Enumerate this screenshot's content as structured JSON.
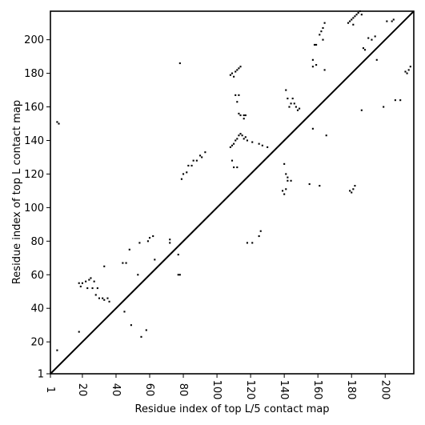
{
  "chart_data": {
    "type": "scatter",
    "xlabel": "Residue index of top L/5 contact map",
    "ylabel": "Residue index of top L contact map",
    "xlim": [
      1,
      217
    ],
    "ylim": [
      1,
      217
    ],
    "x_ticks": [
      1,
      20,
      40,
      60,
      80,
      100,
      120,
      140,
      160,
      180,
      200
    ],
    "y_ticks": [
      1,
      20,
      40,
      60,
      80,
      100,
      120,
      140,
      160,
      180,
      200
    ],
    "diagonal": true,
    "marker_color": "#000000",
    "series": [
      {
        "points": [
          [
            18,
            26
          ],
          [
            20,
            55
          ],
          [
            22,
            56
          ],
          [
            24,
            57
          ],
          [
            26,
            52
          ],
          [
            25,
            58
          ],
          [
            27,
            56
          ],
          [
            28,
            48
          ],
          [
            30,
            46
          ],
          [
            32,
            46
          ],
          [
            33,
            45
          ],
          [
            35,
            46
          ],
          [
            36,
            44
          ],
          [
            29,
            52
          ],
          [
            23,
            52
          ],
          [
            18,
            55
          ],
          [
            19,
            53
          ],
          [
            44,
            67
          ],
          [
            46,
            67
          ],
          [
            48,
            75
          ],
          [
            53,
            60
          ],
          [
            54,
            79
          ],
          [
            59,
            80
          ],
          [
            60,
            82
          ],
          [
            62,
            83
          ],
          [
            63,
            69
          ],
          [
            72,
            79
          ],
          [
            72,
            81
          ],
          [
            33,
            65
          ],
          [
            45,
            38
          ],
          [
            49,
            30
          ],
          [
            55,
            23
          ],
          [
            58,
            27
          ],
          [
            77,
            60
          ],
          [
            78,
            60
          ],
          [
            77,
            72
          ],
          [
            79,
            117
          ],
          [
            80,
            120
          ],
          [
            82,
            121
          ],
          [
            83,
            125
          ],
          [
            85,
            125
          ],
          [
            86,
            128
          ],
          [
            88,
            128
          ],
          [
            90,
            131
          ],
          [
            91,
            130
          ],
          [
            93,
            133
          ],
          [
            108,
            136
          ],
          [
            109,
            137
          ],
          [
            110,
            138
          ],
          [
            111,
            140
          ],
          [
            112,
            141
          ],
          [
            113,
            143
          ],
          [
            114,
            144
          ],
          [
            115,
            143
          ],
          [
            116,
            141
          ],
          [
            117,
            142
          ],
          [
            118,
            140
          ],
          [
            121,
            139
          ],
          [
            125,
            138
          ],
          [
            127,
            137
          ],
          [
            130,
            136
          ],
          [
            108,
            179
          ],
          [
            109,
            180
          ],
          [
            110,
            178
          ],
          [
            111,
            181
          ],
          [
            112,
            182
          ],
          [
            113,
            183
          ],
          [
            114,
            184
          ],
          [
            113,
            156
          ],
          [
            114,
            155
          ],
          [
            116,
            155
          ],
          [
            117,
            155
          ],
          [
            116,
            153
          ],
          [
            111,
            167
          ],
          [
            113,
            167
          ],
          [
            112,
            163
          ],
          [
            109,
            128
          ],
          [
            110,
            124
          ],
          [
            112,
            124
          ],
          [
            118,
            79
          ],
          [
            121,
            79
          ],
          [
            125,
            83
          ],
          [
            126,
            86
          ],
          [
            139,
            110
          ],
          [
            141,
            111
          ],
          [
            140,
            108
          ],
          [
            142,
            116
          ],
          [
            144,
            116
          ],
          [
            140,
            126
          ],
          [
            141,
            120
          ],
          [
            142,
            118
          ],
          [
            141,
            170
          ],
          [
            142,
            165
          ],
          [
            144,
            162
          ],
          [
            146,
            162
          ],
          [
            147,
            160
          ],
          [
            148,
            158
          ],
          [
            149,
            159
          ],
          [
            145,
            165
          ],
          [
            143,
            160
          ],
          [
            155,
            114
          ],
          [
            157,
            188
          ],
          [
            157,
            184
          ],
          [
            158,
            197
          ],
          [
            159,
            197
          ],
          [
            159,
            185
          ],
          [
            161,
            203
          ],
          [
            162,
            205
          ],
          [
            163,
            207
          ],
          [
            164,
            210
          ],
          [
            163,
            200
          ],
          [
            164,
            182
          ],
          [
            165,
            143
          ],
          [
            161,
            113
          ],
          [
            157,
            147
          ],
          [
            178,
            210
          ],
          [
            179,
            211
          ],
          [
            180,
            212
          ],
          [
            181,
            213
          ],
          [
            182,
            214
          ],
          [
            183,
            215
          ],
          [
            184,
            216
          ],
          [
            185,
            217
          ],
          [
            186,
            215
          ],
          [
            181,
            209
          ],
          [
            179,
            110
          ],
          [
            180,
            109
          ],
          [
            181,
            111
          ],
          [
            182,
            113
          ],
          [
            187,
            195
          ],
          [
            188,
            194
          ],
          [
            190,
            201
          ],
          [
            192,
            200
          ],
          [
            194,
            202
          ],
          [
            195,
            188
          ],
          [
            199,
            160
          ],
          [
            201,
            211
          ],
          [
            204,
            211
          ],
          [
            205,
            212
          ],
          [
            206,
            164
          ],
          [
            209,
            164
          ],
          [
            212,
            181
          ],
          [
            213,
            180
          ],
          [
            214,
            182
          ],
          [
            215,
            184
          ],
          [
            186,
            158
          ],
          [
            78,
            186
          ],
          [
            5,
            151
          ],
          [
            6,
            150
          ],
          [
            5,
            15
          ]
        ]
      }
    ]
  }
}
